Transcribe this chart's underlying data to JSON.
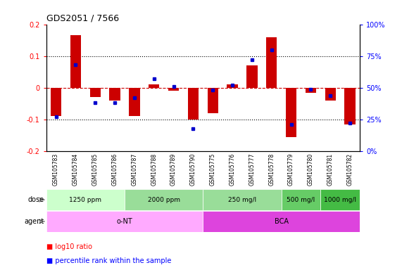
{
  "title": "GDS2051 / 7566",
  "samples": [
    "GSM105783",
    "GSM105784",
    "GSM105785",
    "GSM105786",
    "GSM105787",
    "GSM105788",
    "GSM105789",
    "GSM105790",
    "GSM105775",
    "GSM105776",
    "GSM105777",
    "GSM105778",
    "GSM105779",
    "GSM105780",
    "GSM105781",
    "GSM105782"
  ],
  "log10_ratio": [
    -0.09,
    0.165,
    -0.03,
    -0.04,
    -0.09,
    0.01,
    -0.01,
    -0.1,
    -0.08,
    0.01,
    0.07,
    0.16,
    -0.155,
    -0.015,
    -0.04,
    -0.115
  ],
  "percentile_rank": [
    27,
    68,
    38,
    38,
    42,
    57,
    51,
    18,
    48,
    52,
    72,
    80,
    21,
    49,
    44,
    22
  ],
  "bar_color": "#cc0000",
  "dot_color": "#0000cc",
  "hline_color": "#cc0000",
  "dose_groups": [
    {
      "label": "1250 ppm",
      "start": 0,
      "end": 3,
      "color": "#ccffcc"
    },
    {
      "label": "2000 ppm",
      "start": 4,
      "end": 7,
      "color": "#99dd99"
    },
    {
      "label": "250 mg/l",
      "start": 8,
      "end": 11,
      "color": "#99dd99"
    },
    {
      "label": "500 mg/l",
      "start": 12,
      "end": 13,
      "color": "#66cc66"
    },
    {
      "label": "1000 mg/l",
      "start": 14,
      "end": 15,
      "color": "#44bb44"
    }
  ],
  "agent_groups": [
    {
      "label": "o-NT",
      "start": 0,
      "end": 7,
      "color": "#ffaaff"
    },
    {
      "label": "BCA",
      "start": 8,
      "end": 15,
      "color": "#dd44dd"
    }
  ]
}
